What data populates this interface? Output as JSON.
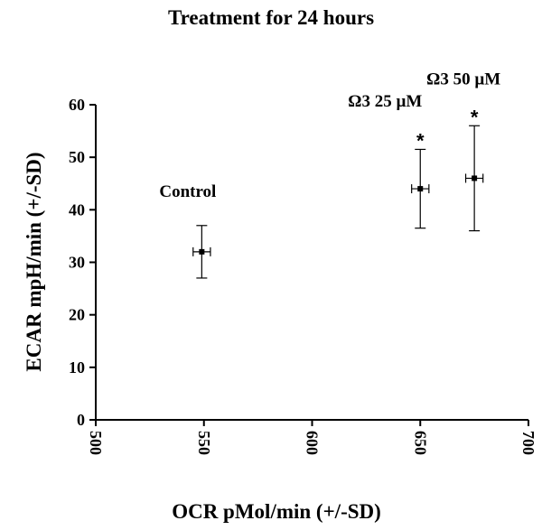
{
  "chart_data": {
    "type": "scatter",
    "title": "Treatment for 24 hours",
    "xlabel": "OCR pMol/min (+/-SD)",
    "ylabel": "ECAR mpH/min (+/-SD)",
    "xlim": [
      500,
      700
    ],
    "ylim": [
      0,
      60
    ],
    "xticks": [
      500,
      550,
      600,
      650,
      700
    ],
    "xtick_labels": [
      "500",
      "550",
      "600",
      "650",
      "700"
    ],
    "yticks": [
      0,
      10,
      20,
      30,
      40,
      50,
      60
    ],
    "ytick_labels": [
      "0",
      "10",
      "20",
      "30",
      "40",
      "50",
      "60"
    ],
    "grid": false,
    "points": [
      {
        "label": "Control",
        "x": 549,
        "y": 32,
        "x_err": 4,
        "y_err_low": 27,
        "y_err_high": 37,
        "significance": ""
      },
      {
        "label": "Ω3 25 µM",
        "x": 650,
        "y": 44,
        "x_err": 4,
        "y_err_low": 36.5,
        "y_err_high": 51.5,
        "significance": "*"
      },
      {
        "label": "Ω3 50 µM",
        "x": 675,
        "y": 46,
        "x_err": 4,
        "y_err_low": 36,
        "y_err_high": 56,
        "significance": "*"
      }
    ]
  }
}
